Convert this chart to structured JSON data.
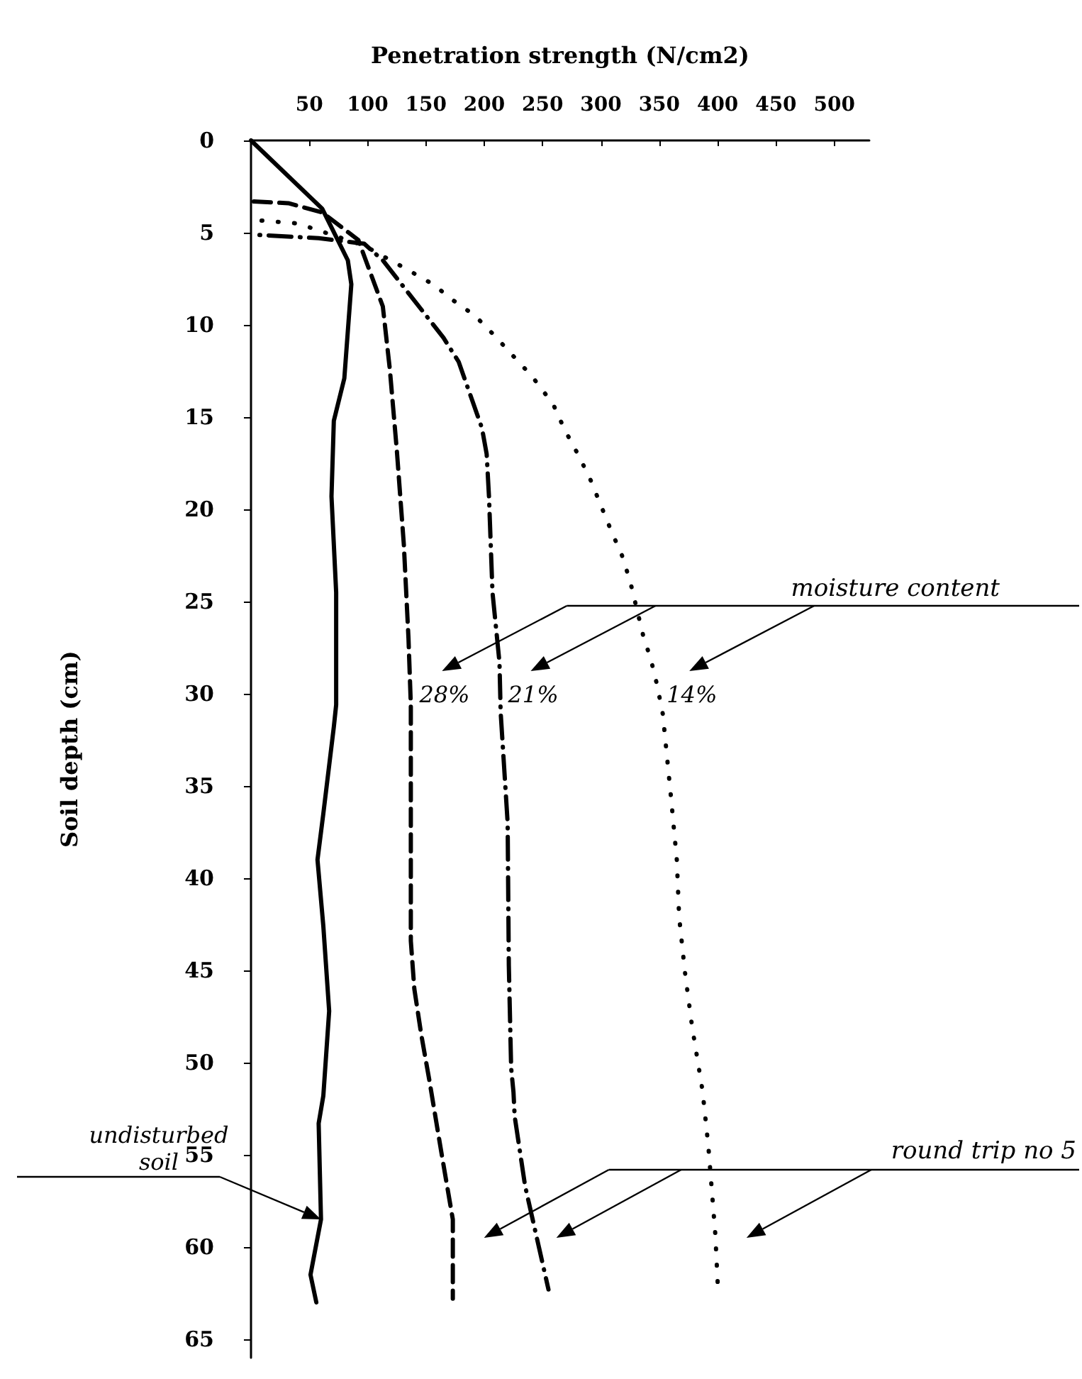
{
  "chart_data": {
    "type": "line",
    "xlabel": "Penetration strength (N/cm2)",
    "ylabel": "Soil depth (cm)",
    "xlim": [
      0,
      530
    ],
    "xticks": [
      50,
      100,
      150,
      200,
      250,
      300,
      350,
      400,
      450,
      500
    ],
    "ylim": [
      66,
      0
    ],
    "yticks": [
      0,
      5,
      10,
      15,
      20,
      25,
      30,
      35,
      40,
      45,
      50,
      55,
      60,
      65
    ],
    "marker": "none",
    "series": [
      {
        "color": "#000000",
        "line_style": "solid",
        "x": [
          0,
          61,
          83,
          86,
          80,
          71,
          69,
          73,
          73,
          71,
          62,
          57,
          62,
          67,
          62,
          58,
          60,
          51,
          56
        ],
        "values": [
          0,
          3.7,
          6.5,
          7.8,
          12.9,
          15.2,
          19.3,
          24.5,
          30.6,
          31.8,
          36.5,
          39,
          42.6,
          47.2,
          51.8,
          53.3,
          58.5,
          61.5,
          63
        ]
      },
      {
        "color": "#000000",
        "line_style": "dashed",
        "x": [
          0,
          32,
          61,
          92,
          113,
          119,
          125,
          131,
          135,
          137,
          137,
          137,
          140,
          146,
          153,
          163,
          173,
          173
        ],
        "values": [
          3.3,
          3.4,
          3.9,
          5.4,
          9,
          12.4,
          16.8,
          21.9,
          27,
          30.6,
          34.5,
          43.4,
          46,
          48.5,
          51,
          54.8,
          58.5,
          62.8
        ]
      },
      {
        "color": "#000000",
        "line_style": "dashdot",
        "x": [
          0,
          58,
          97,
          113,
          165,
          178,
          198,
          202,
          204,
          207,
          213,
          214,
          220,
          221,
          223,
          225,
          226,
          235,
          255
        ],
        "values": [
          5.1,
          5.3,
          5.6,
          6.5,
          10.7,
          12,
          15.6,
          17,
          19.3,
          24.5,
          28.3,
          31,
          37,
          44.7,
          50.3,
          51.6,
          52.9,
          56.7,
          62.3
        ]
      },
      {
        "color": "#000000",
        "line_style": "dotted",
        "x": [
          0,
          40,
          97,
          134,
          156,
          174,
          192,
          209,
          225,
          241,
          259,
          269,
          281,
          291,
          300,
          309,
          318,
          325,
          336,
          343,
          348,
          353,
          360,
          365,
          367,
          372,
          378,
          387,
          392,
          398,
          400
        ],
        "values": [
          4.3,
          4.5,
          5.7,
          7,
          7.8,
          8.7,
          9.5,
          10.6,
          11.7,
          12.8,
          14.3,
          15.7,
          17.1,
          18.4,
          19.8,
          21.2,
          22.5,
          23.9,
          26.8,
          28.2,
          29.5,
          31.1,
          35.6,
          39,
          42.1,
          45.1,
          48,
          51.5,
          54.5,
          59.3,
          61.9
        ]
      }
    ],
    "annotations": [
      "moisture content",
      {
        "text": "28%",
        "x": 137,
        "y": 30
      },
      {
        "text": "21%",
        "x": 213,
        "y": 30
      },
      {
        "text": "14%",
        "x": 349,
        "y": 30
      },
      "round trip no 5",
      "undisturbed soil"
    ]
  }
}
